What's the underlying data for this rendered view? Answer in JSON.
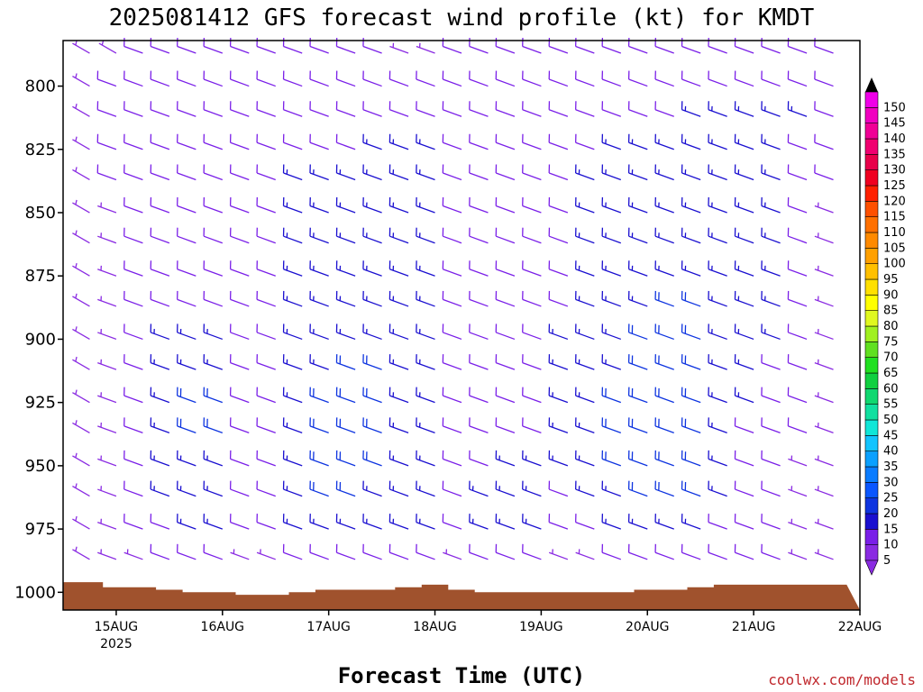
{
  "chart_data": {
    "type": "wind_barbs",
    "title": "2025081412 GFS forecast wind profile (kt) for KMDT",
    "xlabel": "Forecast Time (UTC)",
    "ylabel": "",
    "credit": "coolwx.com/models",
    "y_axis": {
      "scale": "pressure",
      "ylim": [
        1007,
        782
      ],
      "ticks": [
        800,
        825,
        850,
        875,
        900,
        925,
        950,
        975,
        1000
      ],
      "tick_labels": [
        "800",
        "825",
        "850",
        "875",
        "900",
        "925",
        "950",
        "975",
        "1000"
      ]
    },
    "x_axis": {
      "xlim": [
        "2025-08-14T12:00Z",
        "2025-08-22T00:00Z"
      ],
      "ticks": [
        "2025-08-15T00:00Z",
        "2025-08-16T00:00Z",
        "2025-08-17T00:00Z",
        "2025-08-18T00:00Z",
        "2025-08-19T00:00Z",
        "2025-08-20T00:00Z",
        "2025-08-21T00:00Z",
        "2025-08-22T00:00Z"
      ],
      "tick_labels": [
        "15AUG",
        "16AUG",
        "17AUG",
        "18AUG",
        "19AUG",
        "20AUG",
        "21AUG",
        "22AUG"
      ],
      "year_label": "2025"
    },
    "levels": [
      787,
      800,
      812,
      825,
      837,
      850,
      862,
      875,
      887,
      900,
      912,
      925,
      937,
      950,
      962,
      975,
      987
    ],
    "step_hours": 6,
    "wind_speed_kt": [
      [
        5,
        5,
        5,
        10,
        10,
        10,
        10,
        10,
        10,
        10,
        10,
        10,
        10,
        5,
        5,
        10,
        10,
        10,
        10,
        10,
        10,
        10,
        10,
        10,
        10,
        10,
        10,
        10,
        10,
        10
      ],
      [
        5,
        5,
        10,
        10,
        10,
        10,
        10,
        10,
        10,
        10,
        10,
        10,
        10,
        10,
        10,
        10,
        10,
        10,
        10,
        10,
        10,
        10,
        10,
        10,
        10,
        10,
        10,
        10,
        10,
        10
      ],
      [
        5,
        5,
        10,
        10,
        10,
        10,
        10,
        10,
        10,
        10,
        10,
        10,
        10,
        10,
        10,
        10,
        10,
        10,
        10,
        10,
        10,
        10,
        10,
        10,
        15,
        15,
        15,
        15,
        15,
        10
      ],
      [
        5,
        5,
        10,
        10,
        10,
        10,
        10,
        10,
        10,
        10,
        10,
        10,
        15,
        15,
        15,
        10,
        10,
        10,
        10,
        10,
        10,
        15,
        15,
        15,
        15,
        15,
        15,
        15,
        10,
        10
      ],
      [
        5,
        5,
        10,
        10,
        10,
        10,
        10,
        10,
        10,
        15,
        15,
        15,
        15,
        15,
        15,
        10,
        10,
        10,
        10,
        10,
        15,
        15,
        15,
        15,
        15,
        15,
        15,
        15,
        10,
        10
      ],
      [
        5,
        5,
        5,
        10,
        10,
        10,
        10,
        10,
        10,
        15,
        15,
        15,
        15,
        15,
        15,
        10,
        10,
        10,
        10,
        10,
        15,
        15,
        15,
        15,
        15,
        15,
        15,
        15,
        10,
        5
      ],
      [
        5,
        5,
        5,
        10,
        10,
        10,
        10,
        10,
        10,
        15,
        15,
        15,
        15,
        15,
        15,
        10,
        10,
        10,
        10,
        10,
        15,
        15,
        15,
        15,
        15,
        15,
        15,
        15,
        10,
        5
      ],
      [
        5,
        5,
        5,
        10,
        10,
        10,
        10,
        10,
        10,
        15,
        15,
        15,
        15,
        15,
        15,
        10,
        10,
        10,
        10,
        10,
        15,
        15,
        15,
        15,
        15,
        15,
        15,
        15,
        10,
        5
      ],
      [
        5,
        5,
        5,
        10,
        10,
        10,
        10,
        10,
        10,
        15,
        15,
        15,
        15,
        15,
        15,
        10,
        10,
        10,
        10,
        10,
        15,
        15,
        15,
        20,
        20,
        15,
        15,
        15,
        10,
        5
      ],
      [
        5,
        5,
        5,
        10,
        15,
        15,
        15,
        10,
        10,
        15,
        15,
        15,
        15,
        15,
        15,
        10,
        10,
        10,
        10,
        15,
        15,
        15,
        20,
        20,
        20,
        15,
        15,
        15,
        10,
        5
      ],
      [
        5,
        5,
        5,
        10,
        15,
        15,
        15,
        10,
        10,
        15,
        15,
        20,
        20,
        15,
        15,
        10,
        10,
        10,
        10,
        15,
        15,
        15,
        20,
        20,
        20,
        15,
        15,
        10,
        10,
        5
      ],
      [
        5,
        5,
        5,
        10,
        15,
        20,
        20,
        10,
        10,
        15,
        20,
        20,
        20,
        15,
        15,
        10,
        10,
        10,
        10,
        15,
        15,
        20,
        20,
        20,
        20,
        15,
        15,
        10,
        10,
        5
      ],
      [
        5,
        5,
        5,
        10,
        15,
        20,
        20,
        10,
        10,
        15,
        20,
        20,
        20,
        15,
        15,
        10,
        10,
        10,
        10,
        15,
        15,
        20,
        20,
        20,
        20,
        15,
        10,
        10,
        10,
        5
      ],
      [
        5,
        5,
        5,
        10,
        15,
        15,
        15,
        10,
        10,
        15,
        20,
        20,
        20,
        15,
        15,
        10,
        10,
        15,
        15,
        15,
        15,
        20,
        20,
        20,
        20,
        15,
        10,
        10,
        5,
        5
      ],
      [
        5,
        5,
        5,
        10,
        15,
        15,
        15,
        10,
        10,
        15,
        20,
        20,
        15,
        15,
        15,
        10,
        15,
        15,
        15,
        10,
        15,
        15,
        20,
        20,
        20,
        15,
        10,
        10,
        5,
        5
      ],
      [
        5,
        5,
        5,
        10,
        10,
        15,
        15,
        10,
        10,
        15,
        15,
        15,
        15,
        15,
        15,
        10,
        15,
        15,
        15,
        10,
        10,
        15,
        15,
        15,
        15,
        10,
        10,
        10,
        5,
        5
      ],
      [
        5,
        5,
        5,
        5,
        10,
        10,
        10,
        5,
        5,
        10,
        10,
        10,
        10,
        10,
        10,
        5,
        10,
        10,
        10,
        5,
        5,
        10,
        10,
        10,
        10,
        10,
        10,
        10,
        5,
        5
      ]
    ],
    "wind_dir_deg": [
      [
        300,
        300,
        300,
        290,
        290,
        290,
        290,
        290,
        290,
        290,
        290,
        290,
        290,
        290,
        290,
        290,
        290,
        290,
        290,
        290,
        290,
        290,
        290,
        290,
        290,
        290,
        290,
        290,
        290,
        290
      ],
      [
        300,
        300,
        290,
        290,
        290,
        290,
        290,
        290,
        290,
        290,
        290,
        290,
        290,
        290,
        290,
        290,
        290,
        290,
        290,
        290,
        290,
        290,
        290,
        290,
        290,
        290,
        290,
        290,
        290,
        290
      ],
      [
        300,
        300,
        290,
        290,
        290,
        290,
        290,
        290,
        290,
        290,
        290,
        290,
        290,
        290,
        290,
        290,
        290,
        290,
        290,
        290,
        290,
        290,
        290,
        290,
        290,
        290,
        290,
        290,
        290,
        290
      ],
      [
        300,
        300,
        290,
        290,
        290,
        290,
        290,
        290,
        290,
        290,
        290,
        290,
        290,
        290,
        290,
        290,
        290,
        290,
        290,
        290,
        290,
        290,
        290,
        290,
        290,
        290,
        290,
        290,
        290,
        290
      ],
      [
        300,
        300,
        290,
        290,
        290,
        290,
        290,
        290,
        290,
        290,
        290,
        290,
        290,
        290,
        290,
        290,
        290,
        290,
        290,
        290,
        290,
        290,
        290,
        290,
        290,
        290,
        290,
        290,
        290,
        290
      ],
      [
        300,
        300,
        290,
        290,
        290,
        290,
        290,
        290,
        290,
        290,
        290,
        290,
        290,
        290,
        290,
        290,
        290,
        290,
        290,
        290,
        290,
        290,
        290,
        290,
        290,
        290,
        290,
        290,
        290,
        290
      ],
      [
        300,
        300,
        290,
        290,
        290,
        290,
        290,
        290,
        290,
        290,
        290,
        290,
        290,
        290,
        290,
        290,
        290,
        290,
        290,
        290,
        290,
        290,
        290,
        290,
        290,
        290,
        290,
        290,
        290,
        290
      ],
      [
        300,
        300,
        290,
        290,
        290,
        290,
        290,
        290,
        290,
        290,
        290,
        290,
        290,
        290,
        290,
        290,
        290,
        290,
        290,
        290,
        290,
        290,
        290,
        290,
        290,
        290,
        290,
        290,
        290,
        290
      ],
      [
        300,
        300,
        290,
        290,
        290,
        290,
        290,
        290,
        290,
        290,
        290,
        290,
        290,
        290,
        290,
        290,
        290,
        290,
        290,
        290,
        290,
        290,
        290,
        290,
        290,
        290,
        290,
        290,
        290,
        290
      ],
      [
        300,
        300,
        290,
        290,
        290,
        290,
        290,
        290,
        290,
        290,
        290,
        290,
        290,
        290,
        290,
        290,
        290,
        290,
        290,
        290,
        290,
        290,
        290,
        290,
        290,
        290,
        290,
        290,
        290,
        290
      ],
      [
        300,
        300,
        290,
        290,
        290,
        290,
        290,
        290,
        290,
        290,
        290,
        290,
        290,
        290,
        290,
        290,
        290,
        290,
        290,
        290,
        290,
        290,
        290,
        290,
        290,
        290,
        290,
        290,
        290,
        290
      ],
      [
        300,
        300,
        290,
        290,
        290,
        290,
        290,
        290,
        290,
        290,
        290,
        290,
        290,
        290,
        290,
        290,
        290,
        290,
        290,
        290,
        290,
        290,
        290,
        290,
        290,
        290,
        290,
        290,
        290,
        290
      ],
      [
        300,
        300,
        290,
        290,
        290,
        290,
        290,
        290,
        290,
        290,
        290,
        290,
        290,
        290,
        290,
        290,
        290,
        290,
        290,
        290,
        290,
        290,
        290,
        290,
        290,
        290,
        290,
        290,
        290,
        290
      ],
      [
        300,
        300,
        290,
        290,
        290,
        290,
        290,
        290,
        290,
        290,
        290,
        290,
        290,
        290,
        290,
        290,
        290,
        290,
        290,
        290,
        290,
        290,
        290,
        290,
        290,
        290,
        290,
        290,
        290,
        290
      ],
      [
        300,
        300,
        290,
        290,
        290,
        290,
        290,
        290,
        290,
        290,
        290,
        290,
        290,
        290,
        290,
        290,
        290,
        290,
        290,
        290,
        290,
        290,
        290,
        290,
        290,
        290,
        290,
        290,
        290,
        290
      ],
      [
        300,
        300,
        290,
        290,
        290,
        290,
        290,
        290,
        290,
        290,
        290,
        290,
        290,
        290,
        290,
        290,
        290,
        290,
        290,
        290,
        290,
        290,
        290,
        290,
        290,
        290,
        290,
        290,
        290,
        290
      ],
      [
        300,
        300,
        290,
        290,
        290,
        290,
        290,
        290,
        290,
        290,
        290,
        290,
        290,
        290,
        290,
        290,
        290,
        290,
        290,
        290,
        290,
        290,
        290,
        290,
        290,
        290,
        290,
        290,
        290,
        290
      ]
    ],
    "surface_pressure_hpa": [
      996,
      996,
      998,
      998,
      999,
      1000,
      1000,
      1001,
      1001,
      1000,
      999,
      999,
      999,
      998,
      997,
      999,
      1000,
      1000,
      1000,
      1000,
      1000,
      1000,
      999,
      999,
      998,
      997,
      997,
      997,
      997,
      997
    ],
    "surface_color": "#a0522d",
    "colorbar": {
      "label_values": [
        5,
        10,
        15,
        20,
        25,
        30,
        35,
        40,
        45,
        50,
        55,
        60,
        65,
        70,
        75,
        80,
        85,
        90,
        95,
        100,
        105,
        110,
        115,
        120,
        125,
        130,
        135,
        140,
        145,
        150
      ],
      "colors": [
        "#8a2be2",
        "#7a1fe8",
        "#1a0fd0",
        "#0e34e0",
        "#0a56ff",
        "#0a7cff",
        "#0aa0ff",
        "#12c4ff",
        "#10e6d8",
        "#10e0a0",
        "#10d870",
        "#10d040",
        "#20e020",
        "#60e020",
        "#a0f020",
        "#e0f820",
        "#ffff00",
        "#ffe000",
        "#ffc000",
        "#ffa000",
        "#ff8a00",
        "#ff7000",
        "#ff5000",
        "#ff2000",
        "#f00020",
        "#e8004a",
        "#f00070",
        "#f00096",
        "#f000c0",
        "#f000e8"
      ]
    }
  }
}
